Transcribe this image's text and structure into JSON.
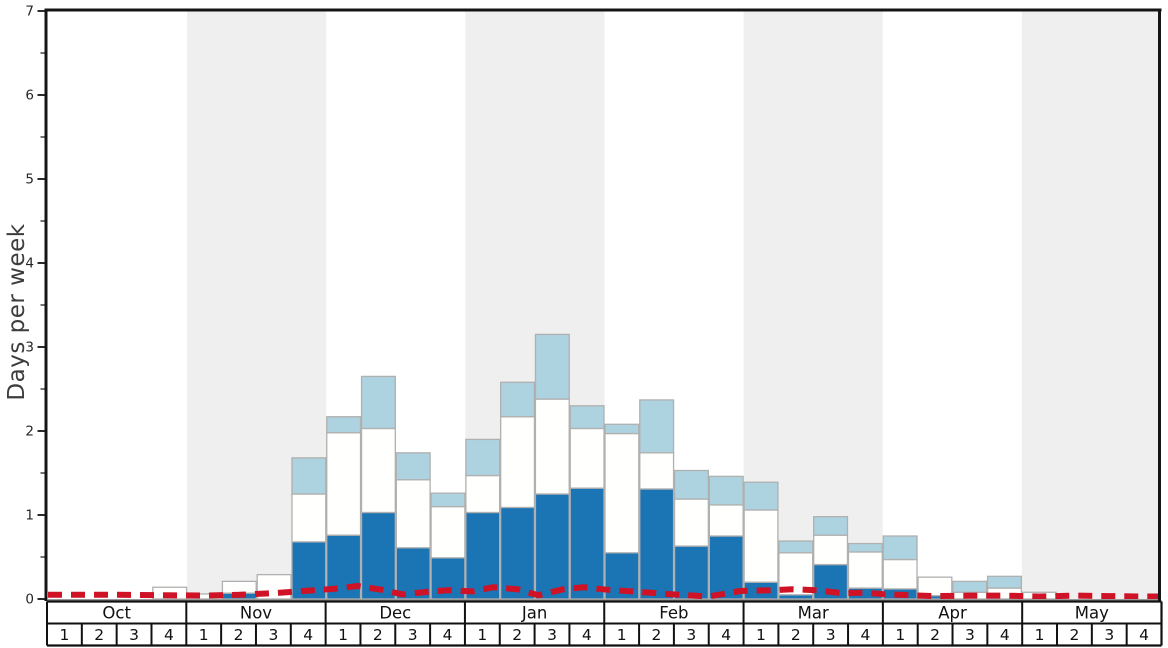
{
  "chart_data": {
    "type": "bar",
    "stacked": true,
    "title": "",
    "ylabel": "Days per week",
    "xlabel": "",
    "ylim": [
      0,
      7
    ],
    "yticks": [
      0,
      1,
      2,
      3,
      4,
      5,
      6,
      7
    ],
    "minor_ytick_step": 0.5,
    "grid": false,
    "legend": "none",
    "months": [
      "Oct",
      "Nov",
      "Dec",
      "Jan",
      "Feb",
      "Mar",
      "Apr",
      "May"
    ],
    "week_labels": [
      "1",
      "2",
      "3",
      "4"
    ],
    "shaded_month_indices": [
      1,
      3,
      5,
      7
    ],
    "categories": [
      "Oct-w1",
      "Oct-w2",
      "Oct-w3",
      "Oct-w4",
      "Nov-w1",
      "Nov-w2",
      "Nov-w3",
      "Nov-w4",
      "Dec-w1",
      "Dec-w2",
      "Dec-w3",
      "Dec-w4",
      "Jan-w1",
      "Jan-w2",
      "Jan-w3",
      "Jan-w4",
      "Feb-w1",
      "Feb-w2",
      "Feb-w3",
      "Feb-w4",
      "Mar-w1",
      "Mar-w2",
      "Mar-w3",
      "Mar-w4",
      "Apr-w1",
      "Apr-w2",
      "Apr-w3",
      "Apr-w4",
      "May-w1",
      "May-w2",
      "May-w3",
      "May-w4"
    ],
    "series": [
      {
        "name": "dark-blue-days",
        "color": "#1b74b4",
        "values": [
          0,
          0,
          0,
          0,
          0,
          0.07,
          0,
          0.68,
          0.76,
          1.03,
          0.61,
          0.49,
          1.03,
          1.09,
          1.25,
          1.32,
          0.55,
          1.31,
          0.63,
          0.75,
          0.2,
          0.05,
          0.41,
          0.13,
          0.12,
          0.04,
          0,
          0,
          0,
          0,
          0,
          0
        ]
      },
      {
        "name": "white-days",
        "color": "#fffffd",
        "values": [
          0,
          0,
          0,
          0.14,
          0.06,
          0.14,
          0.29,
          0.57,
          1.22,
          1.0,
          0.81,
          0.61,
          0.44,
          1.08,
          1.13,
          0.71,
          1.42,
          0.43,
          0.56,
          0.37,
          0.86,
          0.5,
          0.35,
          0.43,
          0.35,
          0.22,
          0.08,
          0.13,
          0.08,
          0,
          0,
          0
        ]
      },
      {
        "name": "light-blue-days",
        "color": "#add2e0",
        "values": [
          0,
          0,
          0,
          0,
          0,
          0,
          0,
          0.43,
          0.19,
          0.62,
          0.32,
          0.16,
          0.43,
          0.41,
          0.77,
          0.27,
          0.11,
          0.63,
          0.34,
          0.34,
          0.33,
          0.14,
          0.22,
          0.1,
          0.28,
          0,
          0.13,
          0.14,
          0,
          0,
          0,
          0
        ]
      }
    ],
    "red_dashed_line": {
      "name": "red-dashed-line",
      "color": "#cf1226",
      "points_week_value": [
        [
          0,
          0.05
        ],
        [
          1,
          0.05
        ],
        [
          2,
          0.05
        ],
        [
          3.2,
          0.045
        ],
        [
          4.5,
          0.04
        ],
        [
          5.5,
          0.05
        ],
        [
          6.5,
          0.07
        ],
        [
          7.5,
          0.1
        ],
        [
          8.2,
          0.12
        ],
        [
          8.9,
          0.155
        ],
        [
          9.6,
          0.11
        ],
        [
          10.2,
          0.055
        ],
        [
          10.9,
          0.085
        ],
        [
          11.5,
          0.105
        ],
        [
          12.2,
          0.09
        ],
        [
          12.8,
          0.14
        ],
        [
          13.5,
          0.115
        ],
        [
          14.1,
          0.045
        ],
        [
          14.8,
          0.115
        ],
        [
          15.4,
          0.14
        ],
        [
          16.1,
          0.11
        ],
        [
          17.0,
          0.085
        ],
        [
          17.8,
          0.06
        ],
        [
          19.0,
          0.03
        ],
        [
          19.9,
          0.095
        ],
        [
          20.8,
          0.105
        ],
        [
          21.4,
          0.115
        ],
        [
          22.1,
          0.105
        ],
        [
          22.8,
          0.07
        ],
        [
          23.5,
          0.075
        ],
        [
          24.1,
          0.055
        ],
        [
          24.8,
          0.045
        ],
        [
          25.5,
          0.035
        ],
        [
          26.5,
          0.04
        ],
        [
          27.5,
          0.04
        ],
        [
          28.5,
          0.03
        ],
        [
          29.5,
          0.04
        ],
        [
          30.5,
          0.035
        ],
        [
          31.5,
          0.03
        ],
        [
          32,
          0.03
        ]
      ]
    },
    "colors": {
      "band_gray": "#efefef",
      "bar_border": "#b0b0b0",
      "axis_spine": "#141414",
      "baseline_gray": "#999999",
      "tick_text": "#262626",
      "table_border": "#111111",
      "table_text": "#111111",
      "ylabel_text": "#3d3d3d"
    }
  }
}
